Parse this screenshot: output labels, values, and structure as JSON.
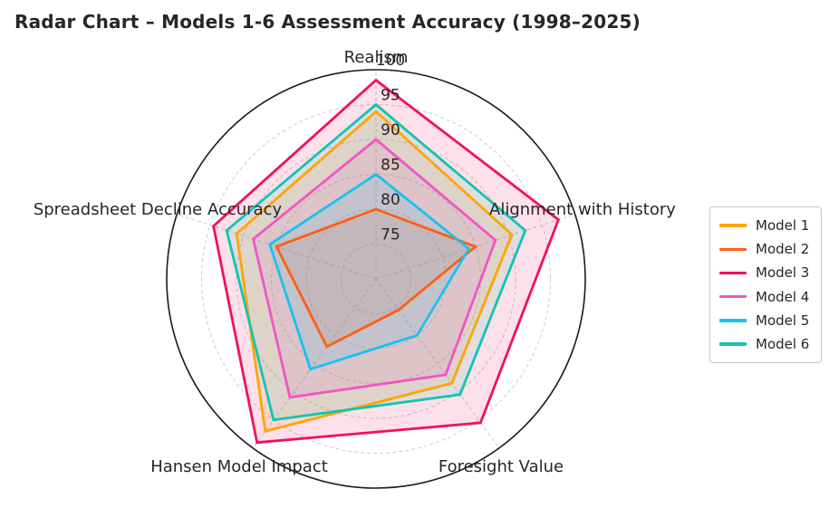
{
  "title": "Radar Chart – Models 1-6 Assessment Accuracy (1998–2025)",
  "chart_data": {
    "type": "radar",
    "categories": [
      "Realism",
      "Alignment with History",
      "Foresight Value",
      "Hansen Model Impact",
      "Spreadsheet Decline Accuracy"
    ],
    "r_min": 70,
    "r_max": 100,
    "r_ticks": [
      75,
      80,
      85,
      90,
      95,
      100
    ],
    "grid": true,
    "grid_style": "dashed-circles",
    "legend_position": "right",
    "series": [
      {
        "name": "Model 1",
        "color": "#FFA502",
        "values": [
          94,
          90.5,
          88.5,
          97,
          91
        ]
      },
      {
        "name": "Model 2",
        "color": "#FF5E13",
        "values": [
          80,
          85,
          75.5,
          82,
          85
        ]
      },
      {
        "name": "Model 3",
        "color": "#F3105C",
        "values": [
          98.5,
          97.5,
          95.5,
          99,
          94.5
        ]
      },
      {
        "name": "Model 4",
        "color": "#F354C6",
        "values": [
          90,
          88,
          87,
          91,
          88.5
        ]
      },
      {
        "name": "Model 5",
        "color": "#18C2F0",
        "values": [
          85,
          84,
          80,
          86,
          86
        ]
      },
      {
        "name": "Model 6",
        "color": "#0FC6AE",
        "values": [
          95,
          92.5,
          90.5,
          95,
          92.5
        ]
      }
    ],
    "colors": {
      "grid": "#cccccc",
      "outline": "#1a1a1a",
      "text": "#262626",
      "background": "#ffffff"
    }
  }
}
